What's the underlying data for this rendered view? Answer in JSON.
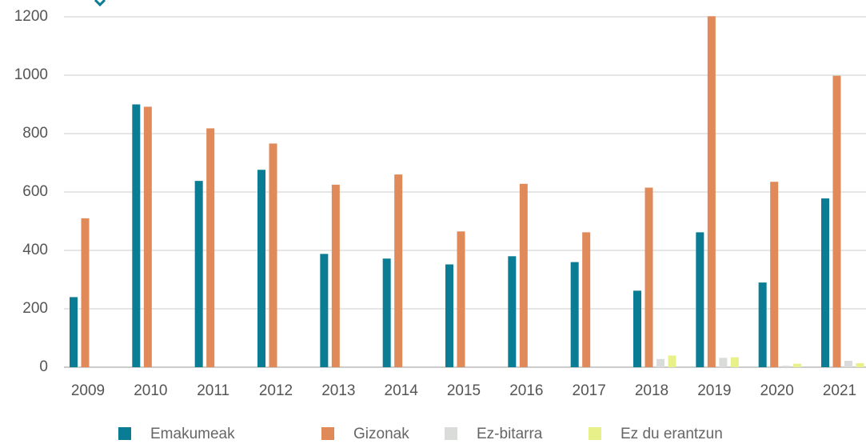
{
  "chart_data": {
    "type": "bar",
    "categories": [
      "2009",
      "2010",
      "2011",
      "2012",
      "2013",
      "2014",
      "2015",
      "2016",
      "2017",
      "2018",
      "2019",
      "2020",
      "2021"
    ],
    "series": [
      {
        "name": "Emakumeak",
        "color": "#0a7d95",
        "values": [
          240,
          900,
          638,
          676,
          388,
          372,
          352,
          380,
          360,
          262,
          462,
          290,
          578
        ]
      },
      {
        "name": "Gizonak",
        "color": "#e08a5a",
        "values": [
          510,
          892,
          818,
          766,
          625,
          660,
          465,
          628,
          462,
          615,
          1202,
          635,
          998
        ]
      },
      {
        "name": "Ez-bitarra",
        "color": "#d9dcd9",
        "values": [
          null,
          null,
          null,
          null,
          null,
          null,
          null,
          null,
          null,
          28,
          32,
          5,
          22
        ]
      },
      {
        "name": "Ez du erantzun",
        "color": "#e8f08a",
        "values": [
          null,
          null,
          null,
          null,
          null,
          null,
          null,
          null,
          null,
          40,
          34,
          12,
          14
        ]
      }
    ],
    "ylim": [
      0,
      1200
    ],
    "yticks": [
      0,
      200,
      400,
      600,
      800,
      1000,
      1200
    ],
    "grid": true
  }
}
